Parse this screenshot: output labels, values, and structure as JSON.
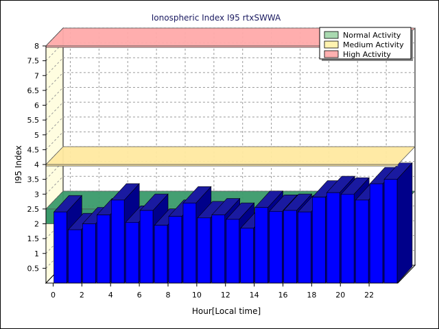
{
  "chart_data": {
    "type": "bar",
    "title": "Ionospheric Index I95 rtxSWWA",
    "xlabel": "Hour[Local time]",
    "ylabel": "I95 Index",
    "ylim": [
      0,
      8
    ],
    "yticks": [
      "0.5",
      "1",
      "1.5",
      "2",
      "2.5",
      "3",
      "3.5",
      "4",
      "4.5",
      "5",
      "5.5",
      "6",
      "6.5",
      "7",
      "7.5",
      "8"
    ],
    "xticks": [
      "0",
      "2",
      "4",
      "6",
      "8",
      "10",
      "12",
      "14",
      "16",
      "18",
      "20",
      "22"
    ],
    "hours": [
      0,
      1,
      2,
      3,
      4,
      5,
      6,
      7,
      8,
      9,
      10,
      11,
      12,
      13,
      14,
      15,
      16,
      17,
      18,
      19,
      20,
      21,
      22,
      23
    ],
    "values": [
      2.4,
      1.8,
      2.0,
      2.3,
      2.8,
      2.05,
      2.45,
      1.95,
      2.25,
      2.7,
      2.2,
      2.3,
      2.15,
      1.85,
      2.55,
      2.42,
      2.45,
      2.4,
      2.9,
      3.05,
      3.0,
      2.8,
      3.35,
      3.5
    ],
    "grid": true,
    "legend_position": "top-right",
    "bands": [
      {
        "name": "Normal Activity",
        "from": 2.0,
        "to": 2.5,
        "color": "#3a9a6a",
        "legend_color": "#a9d9b0"
      },
      {
        "name": "Medium Activity",
        "from": 3.95,
        "to": 4.0,
        "color": "#ffe9a0",
        "legend_color": "#fff3b0"
      },
      {
        "name": "High Activity",
        "from": 7.95,
        "to": 8.0,
        "color": "#ffaaaa",
        "legend_color": "#ffb0b0"
      }
    ],
    "colors": {
      "bar_front": "#0000ff",
      "bar_side": "#00008a",
      "bar_top": "#1a1aa0",
      "wall": "#fffde0"
    }
  }
}
